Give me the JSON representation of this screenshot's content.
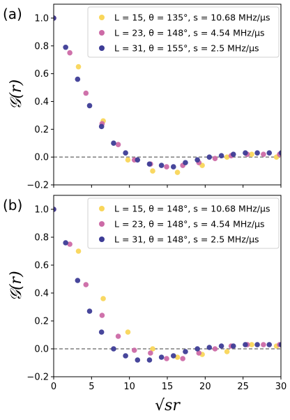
{
  "chart_data": [
    {
      "type": "scatter",
      "panel_label": "(a)",
      "ylabel": "𝒢(r)",
      "xlabel": "",
      "xlim": [
        0,
        30
      ],
      "ylim": [
        -0.2,
        1.1
      ],
      "yticks": [
        "−0.2",
        "0.0",
        "0.2",
        "0.4",
        "0.6",
        "0.8",
        "1.0"
      ],
      "ytick_values": [
        -0.2,
        0.0,
        0.2,
        0.4,
        0.6,
        0.8,
        1.0
      ],
      "xticks": [],
      "reference_line": 0.0,
      "legend_position": "top-right",
      "series": [
        {
          "name": "L = 15, θ = 135°, s = 10.68 MHz/µs",
          "color": "#f9d65a",
          "x": [
            0,
            3.27,
            6.54,
            9.8,
            13.07,
            16.34,
            19.61,
            22.88,
            26.14,
            29.41
          ],
          "y": [
            1.0,
            0.65,
            0.26,
            -0.02,
            -0.1,
            -0.11,
            -0.06,
            0.0,
            0.02,
            0.0
          ]
        },
        {
          "name": "L = 23, θ = 148°, s = 4.54 MHz/µs",
          "color": "#cc6aa6",
          "x": [
            0,
            2.13,
            4.26,
            6.39,
            8.52,
            10.65,
            12.78,
            14.91,
            17.04,
            19.17,
            21.3,
            23.43,
            25.56,
            27.69,
            29.82
          ],
          "y": [
            1.0,
            0.75,
            0.46,
            0.24,
            0.09,
            -0.02,
            -0.05,
            -0.07,
            -0.06,
            -0.04,
            -0.01,
            0.01,
            0.02,
            0.02,
            0.02
          ],
          "_x_first": 0
        },
        {
          "name": "L = 31, θ = 155°, s = 2.5 MHz/µs",
          "color": "#3d3c96",
          "x": [
            0,
            1.58,
            3.16,
            4.74,
            6.32,
            7.91,
            9.49,
            11.07,
            12.65,
            14.23,
            15.81,
            17.39,
            18.97,
            20.55,
            22.14,
            23.72,
            25.3,
            26.88,
            28.46,
            30.04
          ],
          "y": [
            1.0,
            0.79,
            0.56,
            0.37,
            0.22,
            0.1,
            0.03,
            -0.02,
            -0.05,
            -0.06,
            -0.07,
            -0.04,
            -0.02,
            0.0,
            0.01,
            0.02,
            0.03,
            0.03,
            0.03,
            0.03
          ]
        }
      ]
    },
    {
      "type": "scatter",
      "panel_label": "(b)",
      "ylabel": "𝒢(r)",
      "xlabel": "√sr",
      "xlim": [
        0,
        30
      ],
      "ylim": [
        -0.2,
        1.1
      ],
      "yticks": [
        "−0.2",
        "0.0",
        "0.2",
        "0.4",
        "0.6",
        "0.8",
        "1.0"
      ],
      "ytick_values": [
        -0.2,
        0.0,
        0.2,
        0.4,
        0.6,
        0.8,
        1.0
      ],
      "xticks": [
        "0",
        "5",
        "10",
        "15",
        "20",
        "25",
        "30"
      ],
      "xtick_values": [
        0,
        5,
        10,
        15,
        20,
        25,
        30
      ],
      "reference_line": 0.0,
      "legend_position": "top-right",
      "series": [
        {
          "name": "L = 15, θ = 148°, s = 10.68 MHz/µs",
          "color": "#f9d65a",
          "x": [
            0,
            3.27,
            6.54,
            9.8,
            13.07,
            16.34,
            19.61,
            22.88,
            26.14,
            29.41
          ],
          "y": [
            1.0,
            0.7,
            0.36,
            0.12,
            0.0,
            -0.06,
            -0.04,
            -0.02,
            0.03,
            0.02
          ]
        },
        {
          "name": "L = 23, θ = 148°, s = 4.54 MHz/µs",
          "color": "#cc6aa6",
          "x": [
            0,
            2.13,
            4.26,
            6.39,
            8.52,
            10.65,
            12.78,
            14.91,
            17.04,
            19.17,
            21.3,
            23.43,
            25.56,
            27.69,
            29.82
          ],
          "y": [
            1.0,
            0.75,
            0.46,
            0.24,
            0.09,
            -0.01,
            -0.03,
            -0.07,
            -0.07,
            -0.03,
            0.0,
            0.02,
            0.03,
            0.03,
            0.03
          ]
        },
        {
          "name": "L = 31, θ = 148°, s = 2.5 MHz/µs",
          "color": "#3d3c96",
          "x": [
            0,
            1.58,
            3.16,
            4.74,
            6.32,
            7.91,
            9.49,
            11.07,
            12.65,
            14.23,
            15.81,
            17.39,
            18.97,
            20.55,
            22.14,
            23.72,
            25.3,
            26.88,
            28.46,
            30.04
          ],
          "y": [
            1.0,
            0.76,
            0.49,
            0.27,
            0.12,
            0.0,
            -0.05,
            -0.08,
            -0.08,
            -0.06,
            -0.05,
            -0.02,
            0.0,
            0.01,
            0.02,
            0.02,
            0.03,
            0.03,
            0.03,
            0.03
          ]
        }
      ]
    }
  ]
}
